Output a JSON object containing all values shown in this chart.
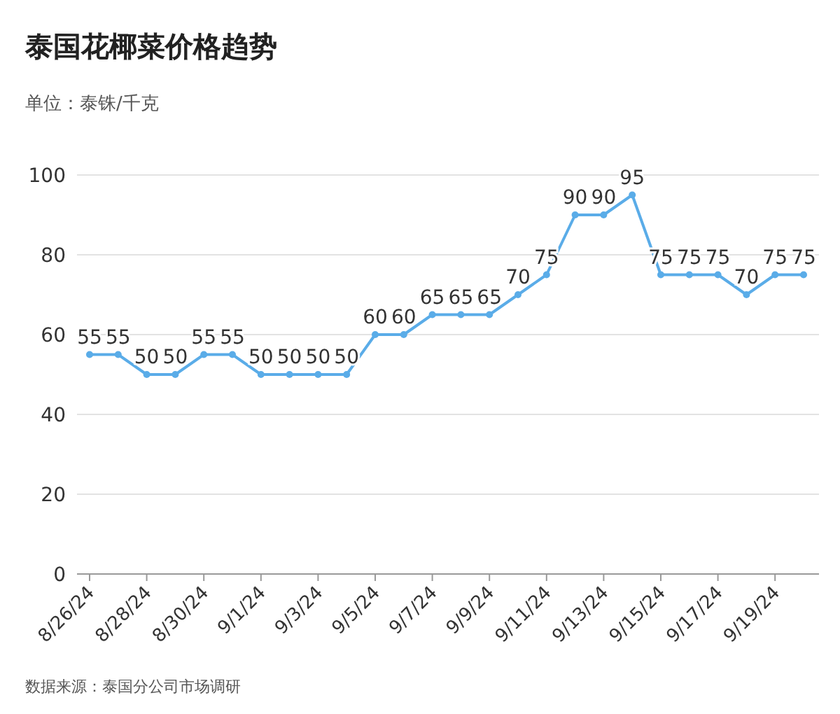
{
  "chart_data": {
    "type": "line",
    "title": "泰国花椰菜价格趋势",
    "subtitle": "单位：泰铢/千克",
    "categories": [
      "8/26/24",
      null,
      "8/28/24",
      null,
      "8/30/24",
      null,
      "9/1/24",
      null,
      "9/3/24",
      null,
      "9/5/24",
      null,
      "9/7/24",
      null,
      "9/9/24",
      null,
      "9/11/24",
      null,
      "9/13/24",
      null,
      "9/15/24",
      null,
      "9/17/24",
      null,
      "9/19/24",
      null
    ],
    "series": [
      {
        "color": "#5aace8",
        "values": [
          55,
          55,
          50,
          50,
          55,
          55,
          50,
          50,
          50,
          50,
          60,
          60,
          65,
          65,
          65,
          70,
          75,
          90,
          90,
          95,
          75,
          75,
          75,
          70,
          75,
          75
        ]
      }
    ],
    "ylim": [
      0,
      100
    ],
    "yticks": [
      0,
      20,
      40,
      60,
      80,
      100
    ],
    "grid": "y",
    "marker": "circle",
    "line_style": "solid",
    "data_labels": true,
    "annotations": [
      "数据来源：泰国分公司市场调研"
    ]
  }
}
